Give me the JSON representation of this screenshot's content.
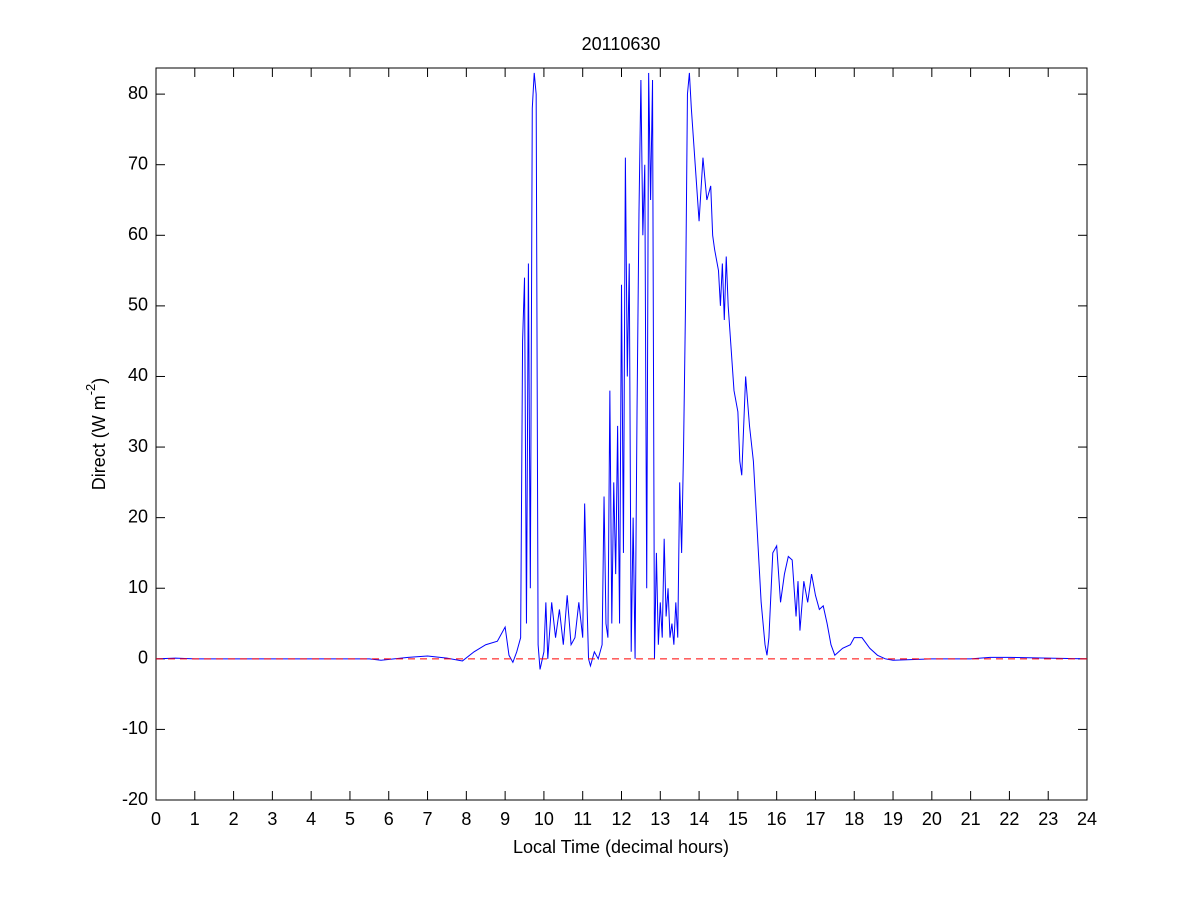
{
  "chart_data": {
    "type": "line",
    "title": "20110630",
    "xlabel": "Local Time (decimal hours)",
    "ylabel": {
      "text": "Direct (W m",
      "sup": "-2",
      "end": ")"
    },
    "x": [
      0,
      0.5,
      1,
      5.5,
      5.8,
      6.5,
      7,
      7.5,
      7.9,
      8.2,
      8.5,
      8.8,
      9,
      9.1,
      9.2,
      9.3,
      9.4,
      9.45,
      9.5,
      9.55,
      9.6,
      9.65,
      9.7,
      9.75,
      9.8,
      9.85,
      9.9,
      10,
      10.05,
      10.1,
      10.2,
      10.3,
      10.4,
      10.5,
      10.6,
      10.7,
      10.8,
      10.9,
      11,
      11.05,
      11.1,
      11.15,
      11.2,
      11.3,
      11.4,
      11.5,
      11.55,
      11.6,
      11.65,
      11.7,
      11.75,
      11.8,
      11.85,
      11.9,
      11.95,
      12,
      12.05,
      12.1,
      12.15,
      12.2,
      12.25,
      12.3,
      12.35,
      12.4,
      12.45,
      12.5,
      12.55,
      12.6,
      12.65,
      12.7,
      12.75,
      12.8,
      12.85,
      12.9,
      12.95,
      13,
      13.05,
      13.1,
      13.15,
      13.2,
      13.25,
      13.3,
      13.35,
      13.4,
      13.45,
      13.5,
      13.55,
      13.6,
      13.65,
      13.7,
      13.75,
      13.8,
      13.9,
      14,
      14.1,
      14.2,
      14.3,
      14.35,
      14.4,
      14.5,
      14.55,
      14.6,
      14.65,
      14.7,
      14.75,
      14.8,
      14.9,
      15,
      15.05,
      15.1,
      15.2,
      15.3,
      15.4,
      15.5,
      15.6,
      15.7,
      15.75,
      15.8,
      15.9,
      16,
      16.1,
      16.2,
      16.3,
      16.4,
      16.5,
      16.55,
      16.6,
      16.7,
      16.8,
      16.9,
      17,
      17.1,
      17.2,
      17.3,
      17.4,
      17.5,
      17.7,
      17.9,
      18,
      18.2,
      18.4,
      18.6,
      18.8,
      19,
      20,
      21,
      21.5,
      22,
      23,
      24
    ],
    "series": [
      {
        "color": "#0000ff",
        "values": [
          0,
          0.1,
          0,
          0,
          -0.2,
          0.2,
          0.4,
          0.1,
          -0.3,
          1,
          2,
          2.5,
          4.5,
          0.5,
          -0.5,
          1,
          3,
          45,
          54,
          5,
          56,
          10,
          78,
          83,
          80,
          2,
          -1.5,
          1,
          8,
          0,
          8,
          3,
          7,
          2,
          9,
          2,
          3,
          8,
          3,
          22,
          10,
          0,
          -1,
          1,
          0,
          2,
          23,
          5,
          3,
          38,
          5,
          25,
          12,
          33,
          5,
          53,
          15,
          71,
          40,
          56,
          1,
          20,
          0,
          35,
          63,
          82,
          60,
          70,
          10,
          83,
          65,
          82,
          0,
          15,
          2,
          8,
          3,
          17,
          6,
          10,
          3,
          5,
          2,
          8,
          3,
          25,
          15,
          30,
          50,
          80,
          83,
          78,
          70,
          62,
          71,
          65,
          67,
          60,
          58,
          55,
          50,
          56,
          48,
          57,
          50,
          46,
          38,
          35,
          28,
          26,
          40,
          33,
          28,
          18,
          8,
          2,
          0.5,
          3,
          15,
          16,
          8,
          12,
          14.5,
          14,
          6,
          11,
          4,
          11,
          8,
          12,
          9,
          7,
          7.5,
          5,
          2,
          0.5,
          1.5,
          2,
          3,
          3,
          1.5,
          0.5,
          0,
          -0.2,
          0,
          0,
          0.2,
          0.2,
          0.1,
          0
        ]
      }
    ],
    "reference_line": {
      "value": 0,
      "color": "#ff0000"
    },
    "xlim": [
      0,
      24
    ],
    "xticks": [
      0,
      1,
      2,
      3,
      4,
      5,
      6,
      7,
      8,
      9,
      10,
      11,
      12,
      13,
      14,
      15,
      16,
      17,
      18,
      19,
      20,
      21,
      22,
      23,
      24
    ],
    "ylim": [
      -20,
      83.7
    ],
    "yticks": [
      -20,
      -10,
      0,
      10,
      20,
      30,
      40,
      50,
      60,
      70,
      80
    ]
  }
}
